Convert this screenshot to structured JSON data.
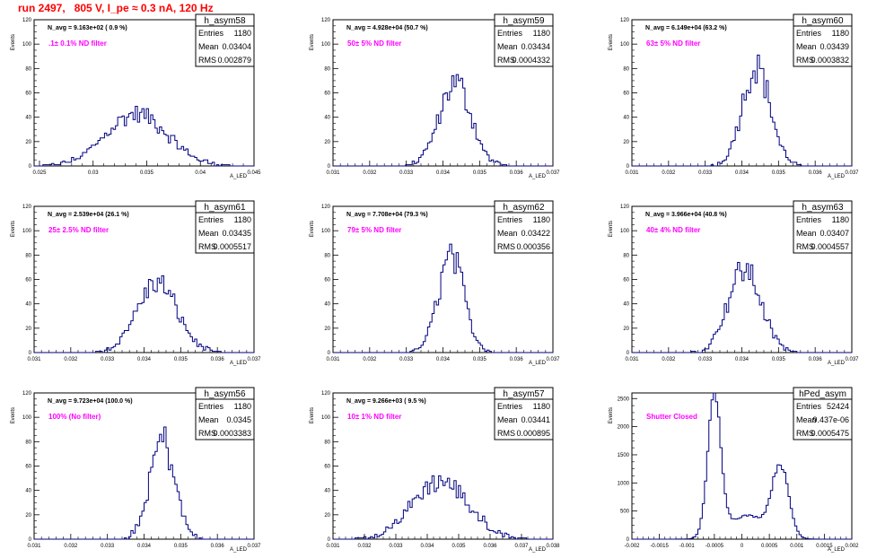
{
  "header": {
    "title": "run 2497,   805 V, I_pe ≈ 0.3 nA, 120 Hz"
  },
  "chart_data": [
    {
      "type": "histogram",
      "name": "h_asym58",
      "ylabel": "Events",
      "xlabel": "A_LED",
      "xlim": [
        0.0245,
        0.045
      ],
      "ylim": [
        0,
        120
      ],
      "xticks": [
        0.025,
        0.03,
        0.035,
        0.04,
        0.045
      ],
      "xtick_labels": [
        "0.025",
        "0.03",
        "0.035",
        "0.04",
        "0.045"
      ],
      "yticks": [
        0,
        20,
        40,
        60,
        80,
        100,
        120
      ],
      "stats": {
        "Entries": "1180",
        "Mean": "0.03404",
        "RMS": "0.002879"
      },
      "n_avg": "N_avg = 9.163e+02 ( 0.9 %)",
      "filter": ".1± 0.1% ND filter",
      "gen": {
        "mean": 0.03404,
        "rms": 0.002879,
        "peak": 45,
        "bins": 100
      }
    },
    {
      "type": "histogram",
      "name": "h_asym59",
      "ylabel": "Events",
      "xlabel": "A_LED",
      "xlim": [
        0.031,
        0.037
      ],
      "ylim": [
        0,
        120
      ],
      "xticks": [
        0.031,
        0.032,
        0.033,
        0.034,
        0.035,
        0.036,
        0.037
      ],
      "xtick_labels": [
        "0.031",
        "0.032",
        "0.033",
        "0.034",
        "0.035",
        "0.036",
        "0.037"
      ],
      "yticks": [
        0,
        20,
        40,
        60,
        80,
        100,
        120
      ],
      "stats": {
        "Entries": "1180",
        "Mean": "0.03434",
        "RMS": "0.0004332"
      },
      "n_avg": "N_avg = 4.928e+04 (50.7 %)",
      "filter": "50± 5% ND filter",
      "gen": {
        "mean": 0.03434,
        "rms": 0.0004332,
        "peak": 72,
        "bins": 100
      }
    },
    {
      "type": "histogram",
      "name": "h_asym60",
      "ylabel": "Events",
      "xlabel": "A_LED",
      "xlim": [
        0.031,
        0.037
      ],
      "ylim": [
        0,
        120
      ],
      "xticks": [
        0.031,
        0.032,
        0.033,
        0.034,
        0.035,
        0.036,
        0.037
      ],
      "xtick_labels": [
        "0.031",
        "0.032",
        "0.033",
        "0.034",
        "0.035",
        "0.036",
        "0.037"
      ],
      "yticks": [
        0,
        20,
        40,
        60,
        80,
        100,
        120
      ],
      "stats": {
        "Entries": "1180",
        "Mean": "0.03439",
        "RMS": "0.0003832"
      },
      "n_avg": "N_avg = 6.149e+04 (63.2 %)",
      "filter": "63± 5% ND filter",
      "gen": {
        "mean": 0.03439,
        "rms": 0.0003832,
        "peak": 86,
        "bins": 100
      }
    },
    {
      "type": "histogram",
      "name": "h_asym61",
      "ylabel": "Events",
      "xlabel": "A_LED",
      "xlim": [
        0.031,
        0.037
      ],
      "ylim": [
        0,
        120
      ],
      "xticks": [
        0.031,
        0.032,
        0.033,
        0.034,
        0.035,
        0.036,
        0.037
      ],
      "xtick_labels": [
        "0.031",
        "0.032",
        "0.033",
        "0.034",
        "0.035",
        "0.036",
        "0.037"
      ],
      "yticks": [
        0,
        20,
        40,
        60,
        80,
        100,
        120
      ],
      "stats": {
        "Entries": "1180",
        "Mean": "0.03435",
        "RMS": "0.0005517"
      },
      "n_avg": "N_avg = 2.539e+04 (26.1 %)",
      "filter": "25± 2.5% ND filter",
      "gen": {
        "mean": 0.03435,
        "rms": 0.0005517,
        "peak": 60,
        "bins": 100
      }
    },
    {
      "type": "histogram",
      "name": "h_asym62",
      "ylabel": "Events",
      "xlabel": "A_LED",
      "xlim": [
        0.031,
        0.037
      ],
      "ylim": [
        0,
        120
      ],
      "xticks": [
        0.031,
        0.032,
        0.033,
        0.034,
        0.035,
        0.036,
        0.037
      ],
      "xtick_labels": [
        "0.031",
        "0.032",
        "0.033",
        "0.034",
        "0.035",
        "0.036",
        "0.037"
      ],
      "yticks": [
        0,
        20,
        40,
        60,
        80,
        100,
        120
      ],
      "stats": {
        "Entries": "1180",
        "Mean": "0.03422",
        "RMS": "0.000356"
      },
      "n_avg": "N_avg = 7.708e+04 (79.3 %)",
      "filter": "79± 5% ND filter",
      "gen": {
        "mean": 0.03422,
        "rms": 0.000356,
        "peak": 82,
        "bins": 100
      }
    },
    {
      "type": "histogram",
      "name": "h_asym63",
      "ylabel": "Events",
      "xlabel": "A_LED",
      "xlim": [
        0.031,
        0.037
      ],
      "ylim": [
        0,
        120
      ],
      "xticks": [
        0.031,
        0.032,
        0.033,
        0.034,
        0.035,
        0.036,
        0.037
      ],
      "xtick_labels": [
        "0.031",
        "0.032",
        "0.033",
        "0.034",
        "0.035",
        "0.036",
        "0.037"
      ],
      "yticks": [
        0,
        20,
        40,
        60,
        80,
        100,
        120
      ],
      "stats": {
        "Entries": "1180",
        "Mean": "0.03407",
        "RMS": "0.0004557"
      },
      "n_avg": "N_avg = 3.966e+04 (40.8 %)",
      "filter": "40± 4% ND filter",
      "gen": {
        "mean": 0.03407,
        "rms": 0.0004557,
        "peak": 72,
        "bins": 100
      }
    },
    {
      "type": "histogram",
      "name": "h_asym56",
      "ylabel": "Events",
      "xlabel": "A_LED",
      "xlim": [
        0.031,
        0.037
      ],
      "ylim": [
        0,
        120
      ],
      "xticks": [
        0.031,
        0.032,
        0.033,
        0.034,
        0.035,
        0.036,
        0.037
      ],
      "xtick_labels": [
        "0.031",
        "0.032",
        "0.033",
        "0.034",
        "0.035",
        "0.036",
        "0.037"
      ],
      "yticks": [
        0,
        20,
        40,
        60,
        80,
        100,
        120
      ],
      "stats": {
        "Entries": "1180",
        "Mean": "0.0345",
        "RMS": "0.0003383"
      },
      "n_avg": "N_avg = 9.723e+04 (100.0 %)",
      "filter": "100% (No filter)",
      "gen": {
        "mean": 0.0345,
        "rms": 0.0003383,
        "peak": 86,
        "bins": 100
      }
    },
    {
      "type": "histogram",
      "name": "h_asym57",
      "ylabel": "Events",
      "xlabel": "A_LED",
      "xlim": [
        0.031,
        0.038
      ],
      "ylim": [
        0,
        120
      ],
      "xticks": [
        0.031,
        0.032,
        0.033,
        0.034,
        0.035,
        0.036,
        0.037,
        0.038
      ],
      "xtick_labels": [
        "0.031",
        "0.032",
        "0.033",
        "0.034",
        "0.035",
        "0.036",
        "0.037",
        "0.038"
      ],
      "yticks": [
        0,
        20,
        40,
        60,
        80,
        100,
        120
      ],
      "stats": {
        "Entries": "1180",
        "Mean": "0.03441",
        "RMS": "0.000895"
      },
      "n_avg": "N_avg = 9.266e+03 ( 9.5 %)",
      "filter": "10± 1% ND filter",
      "gen": {
        "mean": 0.03441,
        "rms": 0.000895,
        "peak": 50,
        "bins": 100
      }
    },
    {
      "type": "histogram",
      "name": "hPed_asym",
      "ylabel": "Events",
      "xlabel": "A_LED",
      "xlim": [
        -0.002,
        0.002
      ],
      "ylim": [
        0,
        2600
      ],
      "xticks": [
        -0.002,
        -0.0015,
        -0.001,
        -0.0005,
        0,
        0.0005,
        0.001,
        0.0015,
        0.002
      ],
      "xtick_labels": [
        "-0.002",
        "-0.0015",
        "-0.001",
        "-0.0005",
        "0",
        "0.0005",
        "0.001",
        "0.0015",
        "0.002"
      ],
      "yticks": [
        0,
        500,
        1000,
        1500,
        2000,
        2500
      ],
      "stats": {
        "Entries": "52424",
        "Mean": "9.437e-06",
        "RMS": "0.0005475"
      },
      "n_avg": "",
      "filter": "Shutter Closed",
      "gen": {
        "mode": "double",
        "peaks": [
          [
            -0.0005,
            0.00012,
            2480
          ],
          [
            0.0007,
            0.00015,
            1250
          ]
        ],
        "base": [
          [
            0.0001,
            0.00035,
            420
          ]
        ],
        "bins": 100
      }
    }
  ]
}
